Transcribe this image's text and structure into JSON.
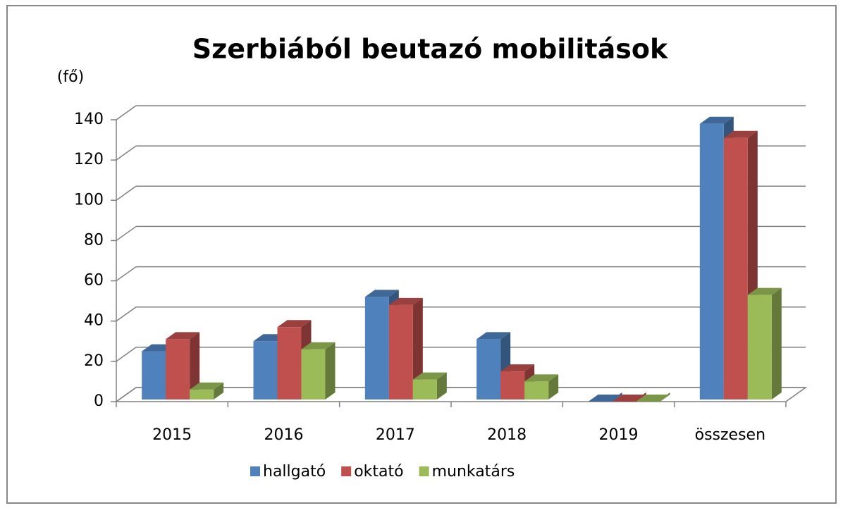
{
  "chart_data": {
    "type": "bar3d",
    "title": "Szerbiából beutazó mobilitások",
    "y_label": "(fő)",
    "categories": [
      "2015",
      "2016",
      "2017",
      "2018",
      "2019",
      "összesen"
    ],
    "series": [
      {
        "name": "hallgató",
        "color": "#4f81bd",
        "values": [
          25,
          30,
          52,
          31,
          0,
          138
        ]
      },
      {
        "name": "oktató",
        "color": "#c0504d",
        "values": [
          31,
          37,
          48,
          15,
          0,
          131
        ]
      },
      {
        "name": "munkatárs",
        "color": "#9bbb59",
        "values": [
          6,
          26,
          11,
          10,
          0,
          53
        ]
      }
    ],
    "ylim": [
      0,
      140
    ],
    "yticks": [
      0,
      20,
      40,
      60,
      80,
      100,
      120,
      140
    ],
    "grid": true,
    "legend": "bottom"
  }
}
